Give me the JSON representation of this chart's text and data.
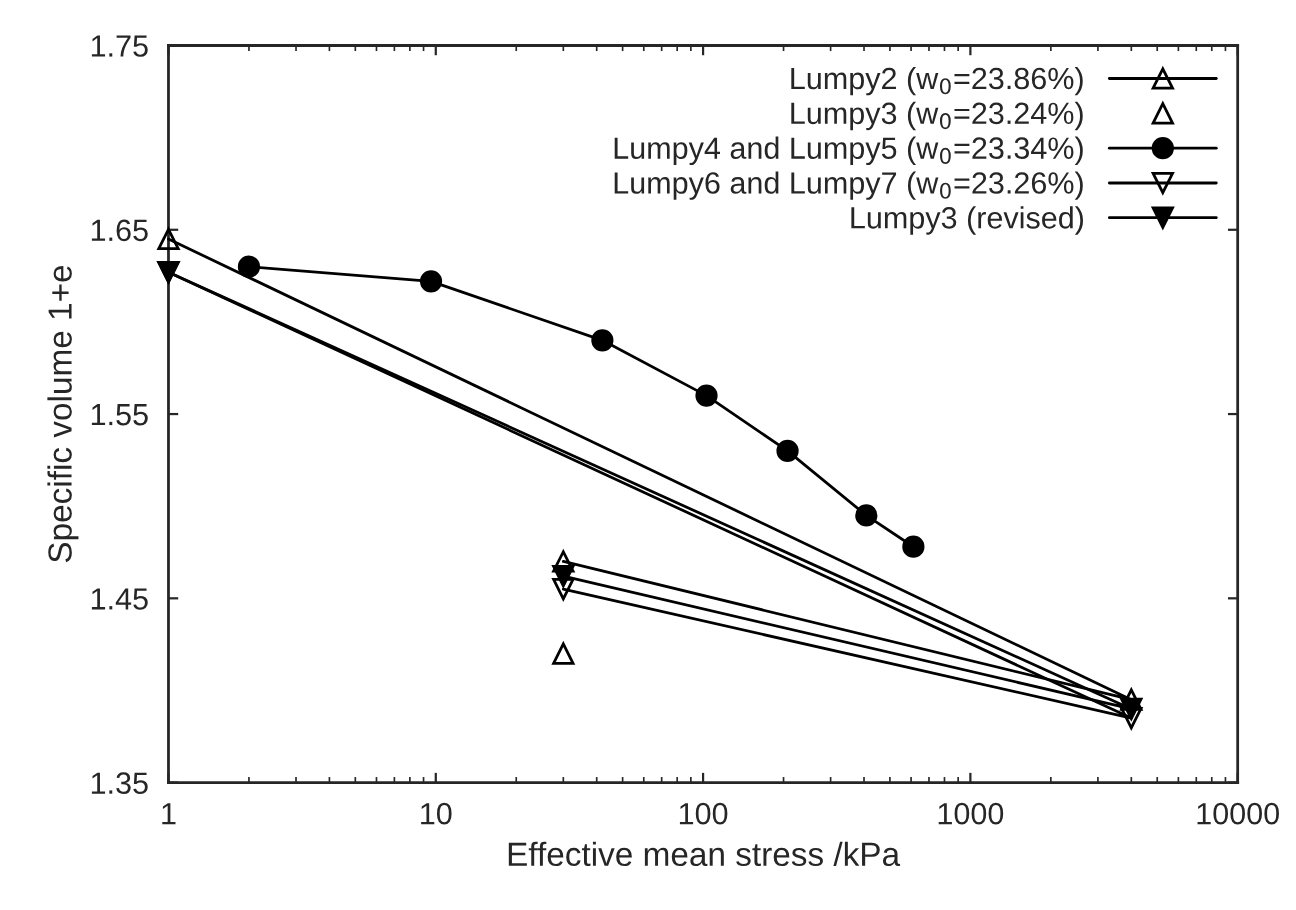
{
  "chart_data": {
    "type": "line",
    "xlabel": "Effective mean stress /kPa",
    "ylabel": "Specific volume 1+e",
    "log": "x",
    "xlim": [
      1,
      10000
    ],
    "xticks": [
      1,
      10,
      100,
      1000,
      10000
    ],
    "ylim": [
      1.35,
      1.75
    ],
    "yticks": [
      {
        "value": 1.35,
        "label": "1.35"
      },
      {
        "value": 1.45,
        "label": "1.45"
      },
      {
        "value": 1.55,
        "label": "1.55"
      },
      {
        "value": 1.65,
        "label": "1.65"
      },
      {
        "value": 1.75,
        "label": "1.75"
      }
    ],
    "grid": false,
    "legend": "top right",
    "series": [
      {
        "name": "Lumpy2 (w$_{0}$=23.86%)",
        "color": "#000000",
        "marker": "triangle-open",
        "line_style": "solid",
        "x": [
          1,
          4000,
          30
        ],
        "values": [
          1.645,
          1.395,
          1.47
        ]
      },
      {
        "name": "Lumpy3 (w$_{0}$=23.24%)",
        "color": "#000000",
        "marker": "triangle-open",
        "line_style": "none",
        "x": [
          30
        ],
        "values": [
          1.42
        ]
      },
      {
        "name": "Lumpy4 and Lumpy5 (w$_{0}$=23.34%)",
        "color": "#000000",
        "marker": "circle",
        "line_style": "solid",
        "x": [
          2,
          9.6,
          42,
          103,
          207,
          408,
          612
        ],
        "values": [
          1.63,
          1.622,
          1.59,
          1.56,
          1.53,
          1.495,
          1.478
        ]
      },
      {
        "name": "Lumpy6 and Lumpy7 (w$_{0}$=23.26%)",
        "color": "#000000",
        "marker": "triangle-down-open",
        "line_style": "solid",
        "x": [
          1,
          4000,
          30
        ],
        "values": [
          1.627,
          1.385,
          1.455
        ]
      },
      {
        "name": "Lumpy3 (revised)",
        "color": "#000000",
        "marker": "triangle-down",
        "line_style": "solid",
        "x": [
          1,
          4000,
          30
        ],
        "values": [
          1.627,
          1.39,
          1.462
        ]
      }
    ]
  }
}
